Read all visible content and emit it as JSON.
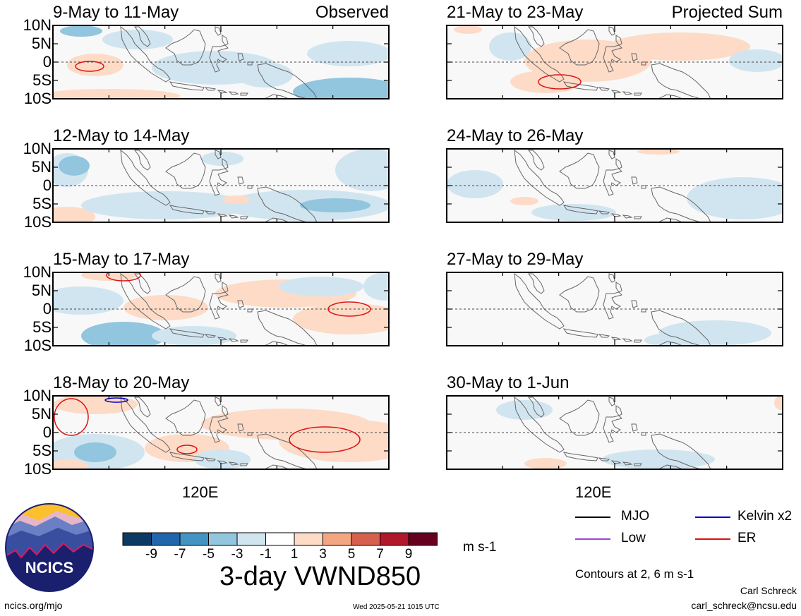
{
  "panels": [
    {
      "title": "9-May to 11-May",
      "corner_label": "Observed",
      "col": 0,
      "row": 0
    },
    {
      "title": "12-May to 14-May",
      "corner_label": "",
      "col": 0,
      "row": 1
    },
    {
      "title": "15-May to 17-May",
      "corner_label": "",
      "col": 0,
      "row": 2
    },
    {
      "title": "18-May to 20-May",
      "corner_label": "",
      "col": 0,
      "row": 3
    },
    {
      "title": "21-May to 23-May",
      "corner_label": "Projected Sum",
      "col": 1,
      "row": 0
    },
    {
      "title": "24-May to 26-May",
      "corner_label": "",
      "col": 1,
      "row": 1
    },
    {
      "title": "27-May to 29-May",
      "corner_label": "",
      "col": 1,
      "row": 2
    },
    {
      "title": "30-May to 1-Jun",
      "corner_label": "",
      "col": 1,
      "row": 3
    }
  ],
  "lat_labels": [
    "10N",
    "5N",
    "0",
    "5S",
    "10S"
  ],
  "lon_label": "120E",
  "colorbar": {
    "colors": [
      "#0d3a63",
      "#2166ac",
      "#4393c3",
      "#92c5de",
      "#d1e5f0",
      "#ffffff",
      "#fddbc7",
      "#f4a582",
      "#d6604d",
      "#b2182b",
      "#67001f"
    ],
    "ticks": [
      "-9",
      "-7",
      "-5",
      "-3",
      "-1",
      "1",
      "3",
      "5",
      "7",
      "9"
    ],
    "unit": "m s-1"
  },
  "main_title": "3-day VWND850",
  "legend": [
    {
      "label": "MJO",
      "color": "#000000"
    },
    {
      "label": "Kelvin x2",
      "color": "#0000cc"
    },
    {
      "label": "Low",
      "color": "#a040e0"
    },
    {
      "label": "ER",
      "color": "#dd1111"
    }
  ],
  "contour_note": "Contours at 2, 6 m s-1",
  "author_name": "Carl Schreck",
  "author_email": "carl_schreck@ncsu.edu",
  "site_url": "ncics.org/mjo",
  "timestamp": "Wed 2025-05-21 1015 UTC",
  "logo_text": "NCICS"
}
